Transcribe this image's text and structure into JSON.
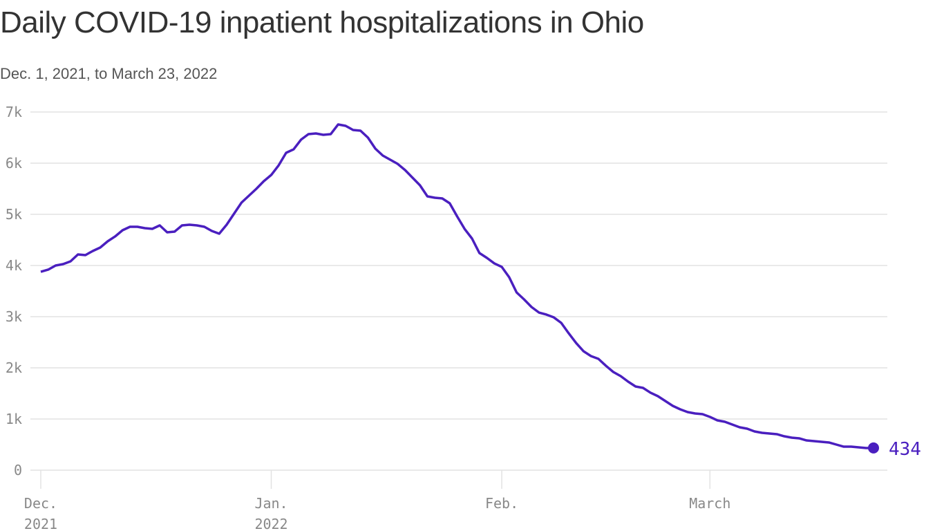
{
  "chart_data": {
    "type": "line",
    "title": "Daily COVID-19 inpatient hospitalizations in Ohio",
    "subtitle": "Dec. 1, 2021, to March 23, 2022",
    "xlabel": "",
    "ylabel": "",
    "x_start": "2021-12-01",
    "x_end": "2022-03-23",
    "xlim_days": [
      0,
      112
    ],
    "ylim": [
      0,
      7000
    ],
    "grid": true,
    "color": "#4a1fbf",
    "y_ticks": [
      {
        "value": 0,
        "label": "0"
      },
      {
        "value": 1000,
        "label": "1k"
      },
      {
        "value": 2000,
        "label": "2k"
      },
      {
        "value": 3000,
        "label": "3k"
      },
      {
        "value": 4000,
        "label": "4k"
      },
      {
        "value": 5000,
        "label": "5k"
      },
      {
        "value": 6000,
        "label": "6k"
      },
      {
        "value": 7000,
        "label": "7k"
      }
    ],
    "x_ticks": [
      {
        "day": 0,
        "line1": "Dec.",
        "line2": "2021"
      },
      {
        "day": 31,
        "line1": "Jan.",
        "line2": "2022"
      },
      {
        "day": 62,
        "line1": "Feb.",
        "line2": ""
      },
      {
        "day": 90,
        "line1": "March",
        "line2": ""
      }
    ],
    "end_label": "434",
    "series": [
      {
        "name": "Inpatient hospitalizations",
        "values": [
          3878,
          3919,
          4000,
          4027,
          4081,
          4216,
          4203,
          4284,
          4351,
          4473,
          4568,
          4689,
          4757,
          4757,
          4730,
          4716,
          4784,
          4649,
          4662,
          4784,
          4797,
          4784,
          4757,
          4676,
          4622,
          4797,
          5014,
          5230,
          5365,
          5500,
          5649,
          5770,
          5959,
          6203,
          6270,
          6459,
          6568,
          6581,
          6554,
          6568,
          6757,
          6730,
          6649,
          6635,
          6500,
          6284,
          6149,
          6068,
          5986,
          5865,
          5716,
          5568,
          5351,
          5324,
          5311,
          5216,
          4959,
          4716,
          4527,
          4243,
          4149,
          4041,
          3973,
          3770,
          3473,
          3338,
          3189,
          3081,
          3041,
          2986,
          2878,
          2676,
          2486,
          2324,
          2230,
          2176,
          2041,
          1919,
          1838,
          1730,
          1635,
          1608,
          1514,
          1446,
          1351,
          1257,
          1189,
          1135,
          1108,
          1095,
          1041,
          973,
          946,
          892,
          838,
          811,
          757,
          730,
          716,
          703,
          662,
          635,
          622,
          581,
          568,
          554,
          541,
          500,
          459,
          459,
          446,
          432,
          434
        ]
      }
    ]
  }
}
